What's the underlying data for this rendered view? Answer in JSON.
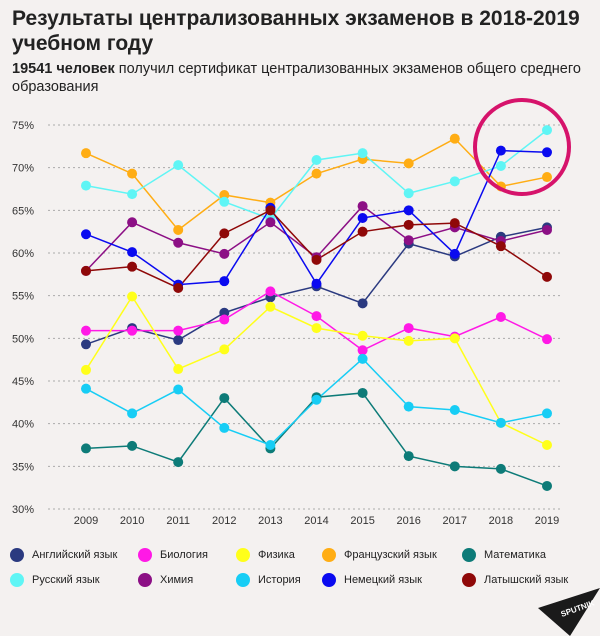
{
  "header": {
    "title": "Результаты централизованных экзаменов в 2018-2019 учебном году",
    "subtitle_bold": "19541 человек",
    "subtitle_rest": " получил сертификат централизованных экзаменов общего среднего образования"
  },
  "logo": "SPUTNIK",
  "chart_data": {
    "type": "line",
    "title": "Результаты централизованных экзаменов в 2018-2019 учебном году",
    "xlabel": "",
    "ylabel": "",
    "ylim": [
      30,
      75
    ],
    "yticks": [
      "30%",
      "35%",
      "40%",
      "45%",
      "50%",
      "55%",
      "60%",
      "65%",
      "70%",
      "75%"
    ],
    "grid": true,
    "legend": "bottom",
    "annotation": "circle highlighting 2018-2019 top values",
    "annotation_color": "#d6136b",
    "categories": [
      "2009",
      "2010",
      "2011",
      "2012",
      "2013",
      "2014",
      "2015",
      "2016",
      "2017",
      "2018",
      "2019"
    ],
    "series": [
      {
        "name": "Английский язык",
        "color": "#2b3a80",
        "values": [
          49.3,
          51.2,
          49.8,
          53.0,
          54.8,
          56.1,
          54.1,
          61.1,
          59.6,
          61.9,
          63.0
        ]
      },
      {
        "name": "Биология",
        "color": "#ff19e6",
        "values": [
          50.9,
          50.9,
          50.9,
          52.2,
          55.5,
          52.6,
          48.6,
          51.2,
          50.2,
          52.5,
          49.9
        ]
      },
      {
        "name": "Физика",
        "color": "#ffff1a",
        "values": [
          46.3,
          54.9,
          46.4,
          48.7,
          53.7,
          51.2,
          50.3,
          49.7,
          50.0,
          40.1,
          37.5
        ]
      },
      {
        "name": "Французский язык",
        "color": "#ffad14",
        "values": [
          71.7,
          69.3,
          62.7,
          66.8,
          65.9,
          69.3,
          71.0,
          70.5,
          73.4,
          67.8,
          68.9
        ]
      },
      {
        "name": "Математика",
        "color": "#0d7b78",
        "values": [
          37.1,
          37.4,
          35.5,
          43.0,
          37.1,
          43.1,
          43.6,
          36.2,
          35.0,
          34.7,
          32.7
        ]
      },
      {
        "name": "Русский язык",
        "color": "#5ff5f5",
        "values": [
          67.9,
          66.9,
          70.3,
          66.0,
          64.0,
          70.9,
          71.7,
          67.0,
          68.4,
          70.2,
          74.4
        ]
      },
      {
        "name": "Химия",
        "color": "#8c0f85",
        "values": [
          57.9,
          63.6,
          61.2,
          59.9,
          63.6,
          59.5,
          65.5,
          61.5,
          63.0,
          61.4,
          62.7
        ]
      },
      {
        "name": "История",
        "color": "#17cdf5",
        "values": [
          44.1,
          41.2,
          44.0,
          39.5,
          37.5,
          42.8,
          47.6,
          42.0,
          41.6,
          40.1,
          41.2
        ]
      },
      {
        "name": "Немецкий язык",
        "color": "#0a0af0",
        "values": [
          62.2,
          60.1,
          56.3,
          56.7,
          65.3,
          56.4,
          64.1,
          65.0,
          59.9,
          72.0,
          71.8
        ]
      },
      {
        "name": "Латышский язык",
        "color": "#8f0808",
        "values": [
          57.9,
          58.4,
          55.9,
          62.3,
          65.0,
          59.2,
          62.5,
          63.3,
          63.5,
          60.8,
          57.2
        ]
      }
    ]
  }
}
